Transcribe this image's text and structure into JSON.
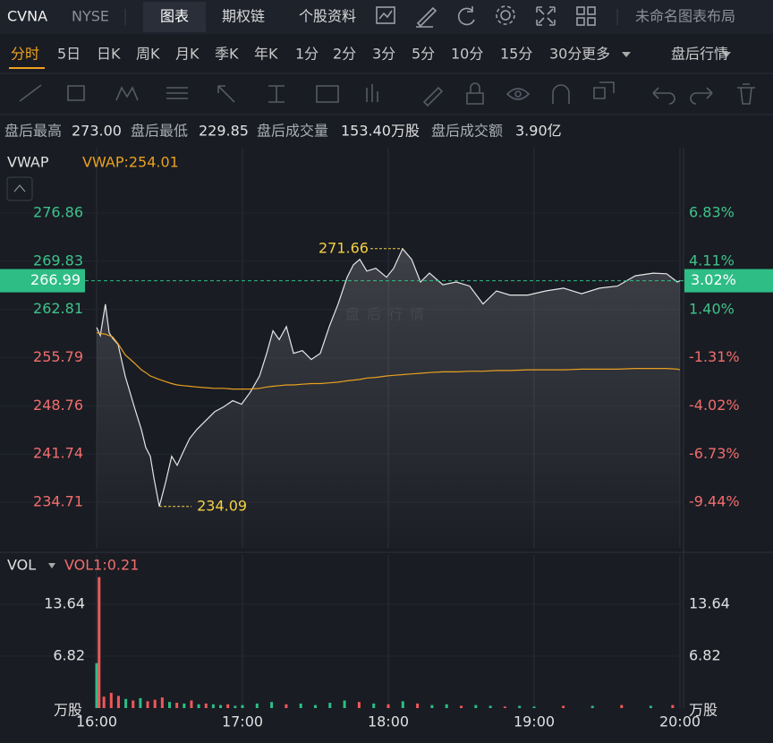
{
  "header": {
    "symbol": "CVNA",
    "exchange": "NYSE",
    "tabs": [
      "图表",
      "期权链",
      "个股资料"
    ],
    "layout_name": "未命名图表布局"
  },
  "periods": {
    "items": [
      "分时",
      "5日",
      "日K",
      "周K",
      "月K",
      "季K",
      "年K",
      "1分",
      "2分",
      "3分",
      "5分",
      "10分",
      "15分",
      "30分"
    ],
    "more": "更多",
    "session": "盘后行情"
  },
  "stats": [
    {
      "label": "盘后最高",
      "value": "273.00"
    },
    {
      "label": "盘后最低",
      "value": "229.85"
    },
    {
      "label": "盘后成交量",
      "value": "153.40万股"
    },
    {
      "label": "盘后成交额",
      "value": "3.90亿"
    }
  ],
  "chart_data": [
    {
      "type": "line",
      "indicator": "VWAP",
      "indicator_label": "VWAP:254.01",
      "watermark": "盘后行情",
      "x": [
        16.0,
        16.025,
        16.06,
        16.086,
        16.11,
        16.147,
        16.196,
        16.258,
        16.307,
        16.337,
        16.368,
        16.393,
        16.43,
        16.472,
        16.515,
        16.552,
        16.595,
        16.638,
        16.687,
        16.748,
        16.81,
        16.871,
        16.933,
        16.994,
        17.055,
        17.117,
        17.166,
        17.209,
        17.252,
        17.301,
        17.35,
        17.411,
        17.472,
        17.534,
        17.595,
        17.656,
        17.718,
        17.761,
        17.804,
        17.853,
        17.914,
        17.988,
        18.037,
        18.098,
        18.16,
        18.221,
        18.282,
        18.374,
        18.466,
        18.558,
        18.65,
        18.742,
        18.834,
        18.957,
        19.08,
        19.202,
        19.325,
        19.448,
        19.571,
        19.693,
        19.816,
        19.908,
        19.982,
        20.0
      ],
      "series": [
        {
          "color": "#e6e6e6",
          "values": [
            260.18,
            259.0,
            263.57,
            259.4,
            258.6,
            257.7,
            253.1,
            248.6,
            245.3,
            242.7,
            241.4,
            238.2,
            234.09,
            237.5,
            241.4,
            240.1,
            242.1,
            244.0,
            245.3,
            246.6,
            247.9,
            248.6,
            249.5,
            249.0,
            250.8,
            253.1,
            256.4,
            259.7,
            258.4,
            260.3,
            256.4,
            256.8,
            255.5,
            256.4,
            260.3,
            263.6,
            267.5,
            269.3,
            270.1,
            268.4,
            268.8,
            267.5,
            268.8,
            271.66,
            270.1,
            266.8,
            268.1,
            266.4,
            266.8,
            266.2,
            263.6,
            265.5,
            264.9,
            264.9,
            265.5,
            265.9,
            265.1,
            265.9,
            266.2,
            267.7,
            268.1,
            268.0,
            266.8,
            266.99
          ]
        },
        {
          "color": "#e8a020",
          "values": [
            259.4,
            259.3,
            259.2,
            259.0,
            258.8,
            257.8,
            256.2,
            255.0,
            254.0,
            253.6,
            253.1,
            252.9,
            252.6,
            252.3,
            252.0,
            251.8,
            251.7,
            251.6,
            251.5,
            251.4,
            251.3,
            251.3,
            251.2,
            251.2,
            251.2,
            251.3,
            251.5,
            251.6,
            251.7,
            251.8,
            251.8,
            251.9,
            252.0,
            252.0,
            252.1,
            252.2,
            252.4,
            252.5,
            252.6,
            252.8,
            252.9,
            253.1,
            253.2,
            253.3,
            253.4,
            253.5,
            253.6,
            253.7,
            253.7,
            253.8,
            253.8,
            253.9,
            253.9,
            254.0,
            254.0,
            254.0,
            254.1,
            254.1,
            254.1,
            254.2,
            254.2,
            254.2,
            254.1,
            254.01
          ]
        }
      ],
      "high": {
        "x": 18.098,
        "value": 271.66
      },
      "low": {
        "x": 16.43,
        "value": 234.09
      },
      "current": {
        "value": 266.99,
        "pct": {
          "value": 3.02,
          "label": "3.02%"
        },
        "color": "#2ebd85"
      },
      "xlim": [
        16,
        20
      ],
      "xticks": [
        16,
        17,
        18,
        19,
        20
      ],
      "ylim": [
        228.06,
        286.37
      ],
      "yticks": [
        276.86,
        269.83,
        262.81,
        255.79,
        248.76,
        241.74,
        234.71
      ],
      "ytick_colors": [
        "#3ec38a",
        "#3ec38a",
        "#3ec38a",
        "#f26d6d",
        "#f26d6d",
        "#f26d6d",
        "#f26d6d"
      ],
      "y2lim": [
        -12.0,
        10.5
      ],
      "y2ticks": [
        {
          "value": 6.83,
          "label": "6.83%"
        },
        {
          "value": 4.11,
          "label": "4.11%"
        },
        {
          "value": 1.4,
          "label": "1.40%"
        },
        {
          "value": -1.31,
          "label": "-1.31%"
        },
        {
          "value": -4.02,
          "label": "-4.02%"
        },
        {
          "value": -6.73,
          "label": "-6.73%"
        },
        {
          "value": -9.44,
          "label": "-9.44%"
        }
      ],
      "y2tick_colors": [
        "#3ec38a",
        "#3ec38a",
        "#3ec38a",
        "#f26d6d",
        "#f26d6d",
        "#f26d6d",
        "#f26d6d"
      ],
      "grid": true
    },
    {
      "type": "bar",
      "indicator": "VOL",
      "indicator_label": "VOL1:0.21",
      "unit": "万股",
      "x": [
        16.0,
        16.017,
        16.05,
        16.1,
        16.15,
        16.2,
        16.25,
        16.3,
        16.35,
        16.4,
        16.45,
        16.5,
        16.55,
        16.6,
        16.65,
        16.7,
        16.75,
        16.8,
        16.85,
        16.9,
        16.95,
        17.0,
        17.1,
        17.2,
        17.3,
        17.4,
        17.5,
        17.6,
        17.7,
        17.8,
        17.9,
        18.0,
        18.1,
        18.2,
        18.3,
        18.4,
        18.5,
        18.6,
        18.7,
        18.8,
        18.9,
        19.0,
        19.2,
        19.4,
        19.6,
        19.8,
        19.95
      ],
      "values": [
        5.9,
        17.2,
        1.5,
        2.0,
        1.6,
        1.2,
        1.0,
        1.3,
        0.9,
        1.1,
        1.4,
        0.8,
        0.7,
        0.6,
        1.0,
        0.5,
        0.6,
        0.5,
        0.4,
        0.5,
        0.3,
        0.4,
        0.6,
        0.8,
        0.5,
        0.6,
        0.4,
        0.7,
        1.0,
        0.8,
        0.6,
        0.5,
        0.9,
        0.6,
        0.4,
        0.5,
        0.3,
        0.4,
        0.3,
        0.2,
        0.3,
        0.2,
        0.3,
        0.3,
        0.4,
        0.3,
        0.4
      ],
      "colors": [
        "#2ebd85",
        "#f0575a",
        "#f0575a",
        "#f0575a",
        "#f0575a",
        "#2ebd85",
        "#f0575a",
        "#2ebd85",
        "#f0575a",
        "#f0575a",
        "#f0575a",
        "#2ebd85",
        "#f0575a",
        "#2ebd85",
        "#f0575a",
        "#2ebd85",
        "#f0575a",
        "#2ebd85",
        "#2ebd85",
        "#f0575a",
        "#2ebd85",
        "#2ebd85",
        "#2ebd85",
        "#2ebd85",
        "#f0575a",
        "#2ebd85",
        "#2ebd85",
        "#2ebd85",
        "#2ebd85",
        "#f0575a",
        "#2ebd85",
        "#f0575a",
        "#2ebd85",
        "#f0575a",
        "#2ebd85",
        "#2ebd85",
        "#f0575a",
        "#2ebd85",
        "#2ebd85",
        "#f0575a",
        "#2ebd85",
        "#2ebd85",
        "#f0575a",
        "#2ebd85",
        "#f0575a",
        "#2ebd85",
        "#f0575a"
      ],
      "xlim": [
        16,
        20
      ],
      "xticks": [
        {
          "value": 16,
          "label": "16:00"
        },
        {
          "value": 17,
          "label": "17:00"
        },
        {
          "value": 18,
          "label": "18:00"
        },
        {
          "value": 19,
          "label": "19:00"
        },
        {
          "value": 20,
          "label": "20:00"
        }
      ],
      "ylim": [
        0,
        20.1
      ],
      "yticks": [
        6.82,
        13.64
      ],
      "grid": true
    }
  ]
}
